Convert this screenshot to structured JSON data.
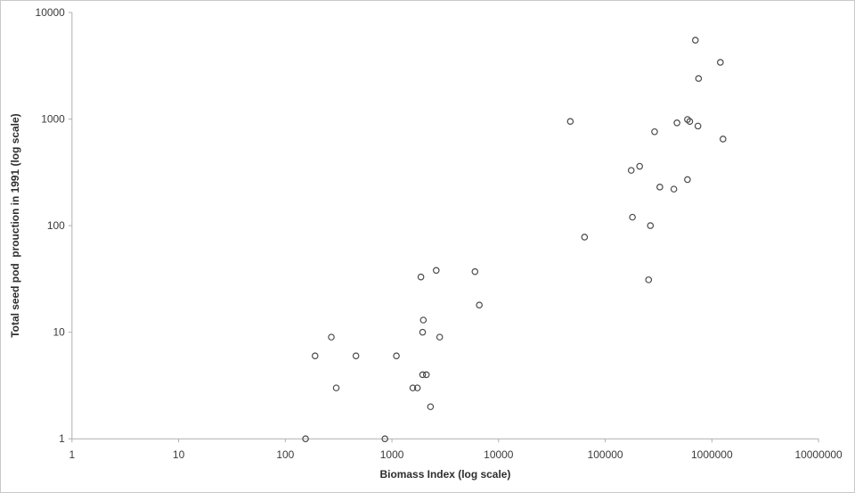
{
  "chart_data": {
    "type": "scatter",
    "title": "",
    "xlabel": "Biomass Index (log scale)",
    "ylabel": "Total seed pod  prouction in 1991 (log scale)",
    "x_scale": "log",
    "y_scale": "log",
    "xlim": [
      1,
      10000000
    ],
    "ylim": [
      1,
      10000
    ],
    "x_ticks": [
      1,
      10,
      100,
      1000,
      10000,
      100000,
      1000000,
      10000000
    ],
    "y_ticks": [
      1,
      10,
      100,
      1000,
      10000
    ],
    "grid": false,
    "legend": false,
    "marker_style": "open-circle",
    "colors": {
      "marker_stroke": "#4a4a4a",
      "axis_line": "#b0b0b0",
      "tick_text": "#3a3a3a",
      "title_text": "#2e2e2e",
      "background": "#ffffff",
      "figure_border": "#c9c9c9"
    },
    "points": [
      [
        155,
        1
      ],
      [
        860,
        1
      ],
      [
        190,
        6
      ],
      [
        270,
        9
      ],
      [
        300,
        3
      ],
      [
        460,
        6
      ],
      [
        1100,
        6
      ],
      [
        1570,
        3
      ],
      [
        1730,
        3
      ],
      [
        1940,
        4
      ],
      [
        2100,
        4
      ],
      [
        1970,
        13
      ],
      [
        1940,
        10
      ],
      [
        2800,
        9
      ],
      [
        2300,
        2
      ],
      [
        1870,
        33
      ],
      [
        2600,
        38
      ],
      [
        6000,
        37
      ],
      [
        6600,
        18
      ],
      [
        47000,
        950
      ],
      [
        64000,
        78
      ],
      [
        175000,
        330
      ],
      [
        210000,
        360
      ],
      [
        180000,
        120
      ],
      [
        265000,
        100
      ],
      [
        255000,
        31
      ],
      [
        290000,
        760
      ],
      [
        325000,
        230
      ],
      [
        440000,
        220
      ],
      [
        470000,
        920
      ],
      [
        590000,
        990
      ],
      [
        620000,
        950
      ],
      [
        590000,
        270
      ],
      [
        700000,
        5500
      ],
      [
        740000,
        860
      ],
      [
        750000,
        2400
      ],
      [
        1200000,
        3400
      ],
      [
        1270000,
        650
      ]
    ]
  }
}
